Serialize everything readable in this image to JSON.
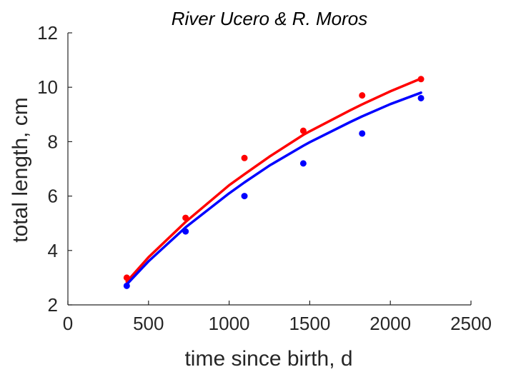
{
  "chart_data": {
    "type": "scatter",
    "title": "River Ucero & R. Moros",
    "xlabel": "time since birth, d",
    "ylabel": "total length, cm",
    "xlim": [
      0,
      2500
    ],
    "ylim": [
      2,
      12
    ],
    "xticks": [
      0,
      500,
      1000,
      1500,
      2000,
      2500
    ],
    "yticks": [
      2,
      4,
      6,
      8,
      10,
      12
    ],
    "grid": false,
    "legend": "none",
    "series": [
      {
        "color": "#ff0000",
        "points": [
          {
            "x": 365,
            "y": 3.0
          },
          {
            "x": 730,
            "y": 5.2
          },
          {
            "x": 1095,
            "y": 7.4
          },
          {
            "x": 1460,
            "y": 8.4
          },
          {
            "x": 1825,
            "y": 9.7
          },
          {
            "x": 2190,
            "y": 10.3
          }
        ],
        "fit": [
          {
            "x": 365,
            "y": 2.85
          },
          {
            "x": 500,
            "y": 3.75
          },
          {
            "x": 730,
            "y": 5.05
          },
          {
            "x": 1000,
            "y": 6.4
          },
          {
            "x": 1095,
            "y": 6.8
          },
          {
            "x": 1250,
            "y": 7.45
          },
          {
            "x": 1460,
            "y": 8.25
          },
          {
            "x": 1500,
            "y": 8.38
          },
          {
            "x": 1750,
            "y": 9.15
          },
          {
            "x": 1825,
            "y": 9.37
          },
          {
            "x": 2000,
            "y": 9.85
          },
          {
            "x": 2190,
            "y": 10.32
          }
        ]
      },
      {
        "color": "#0000ff",
        "points": [
          {
            "x": 365,
            "y": 2.7
          },
          {
            "x": 730,
            "y": 4.7
          },
          {
            "x": 1095,
            "y": 6.0
          },
          {
            "x": 1460,
            "y": 7.2
          },
          {
            "x": 1825,
            "y": 8.3
          },
          {
            "x": 2190,
            "y": 9.6
          }
        ],
        "fit": [
          {
            "x": 365,
            "y": 2.75
          },
          {
            "x": 500,
            "y": 3.6
          },
          {
            "x": 730,
            "y": 4.85
          },
          {
            "x": 1000,
            "y": 6.1
          },
          {
            "x": 1095,
            "y": 6.5
          },
          {
            "x": 1250,
            "y": 7.12
          },
          {
            "x": 1460,
            "y": 7.85
          },
          {
            "x": 1500,
            "y": 7.98
          },
          {
            "x": 1750,
            "y": 8.72
          },
          {
            "x": 1825,
            "y": 8.93
          },
          {
            "x": 2000,
            "y": 9.38
          },
          {
            "x": 2190,
            "y": 9.8
          }
        ]
      }
    ]
  }
}
